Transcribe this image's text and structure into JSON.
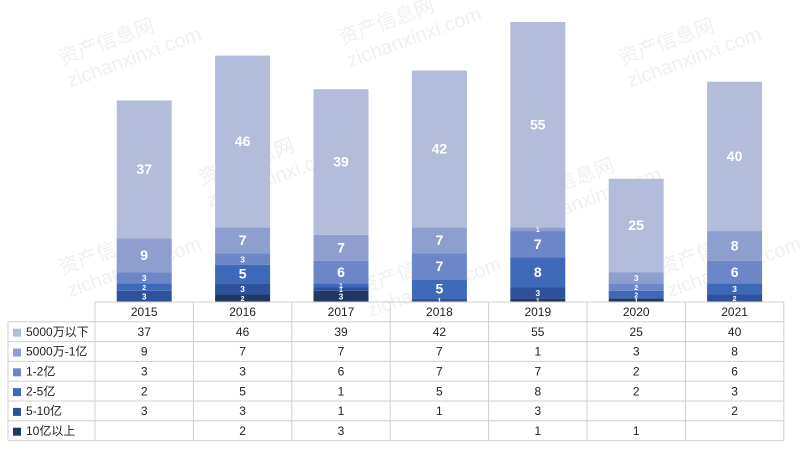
{
  "chart_data": {
    "type": "bar",
    "stacked": true,
    "categories": [
      "2015",
      "2016",
      "2017",
      "2018",
      "2019",
      "2020",
      "2021"
    ],
    "series": [
      {
        "name": "5000万以下",
        "color": "#b3bddb",
        "values": [
          37,
          46,
          39,
          42,
          55,
          25,
          40
        ]
      },
      {
        "name": "5000万-1亿",
        "color": "#8e9fcf",
        "values": [
          9,
          7,
          7,
          7,
          1,
          3,
          8
        ]
      },
      {
        "name": "1-2亿",
        "color": "#6b87c8",
        "values": [
          3,
          3,
          6,
          7,
          7,
          2,
          6
        ]
      },
      {
        "name": "2-5亿",
        "color": "#3e69b9",
        "values": [
          2,
          5,
          1,
          5,
          8,
          2,
          3
        ]
      },
      {
        "name": "5-10亿",
        "color": "#2d529b",
        "values": [
          3,
          3,
          1,
          1,
          3,
          null,
          2
        ]
      },
      {
        "name": "10亿以上",
        "color": "#1f3864",
        "values": [
          null,
          2,
          3,
          null,
          1,
          1,
          null
        ]
      }
    ],
    "ylim": [
      0,
      75
    ],
    "data_table": true,
    "watermark": [
      "资产信息网",
      "zichanxinxi.com"
    ]
  }
}
